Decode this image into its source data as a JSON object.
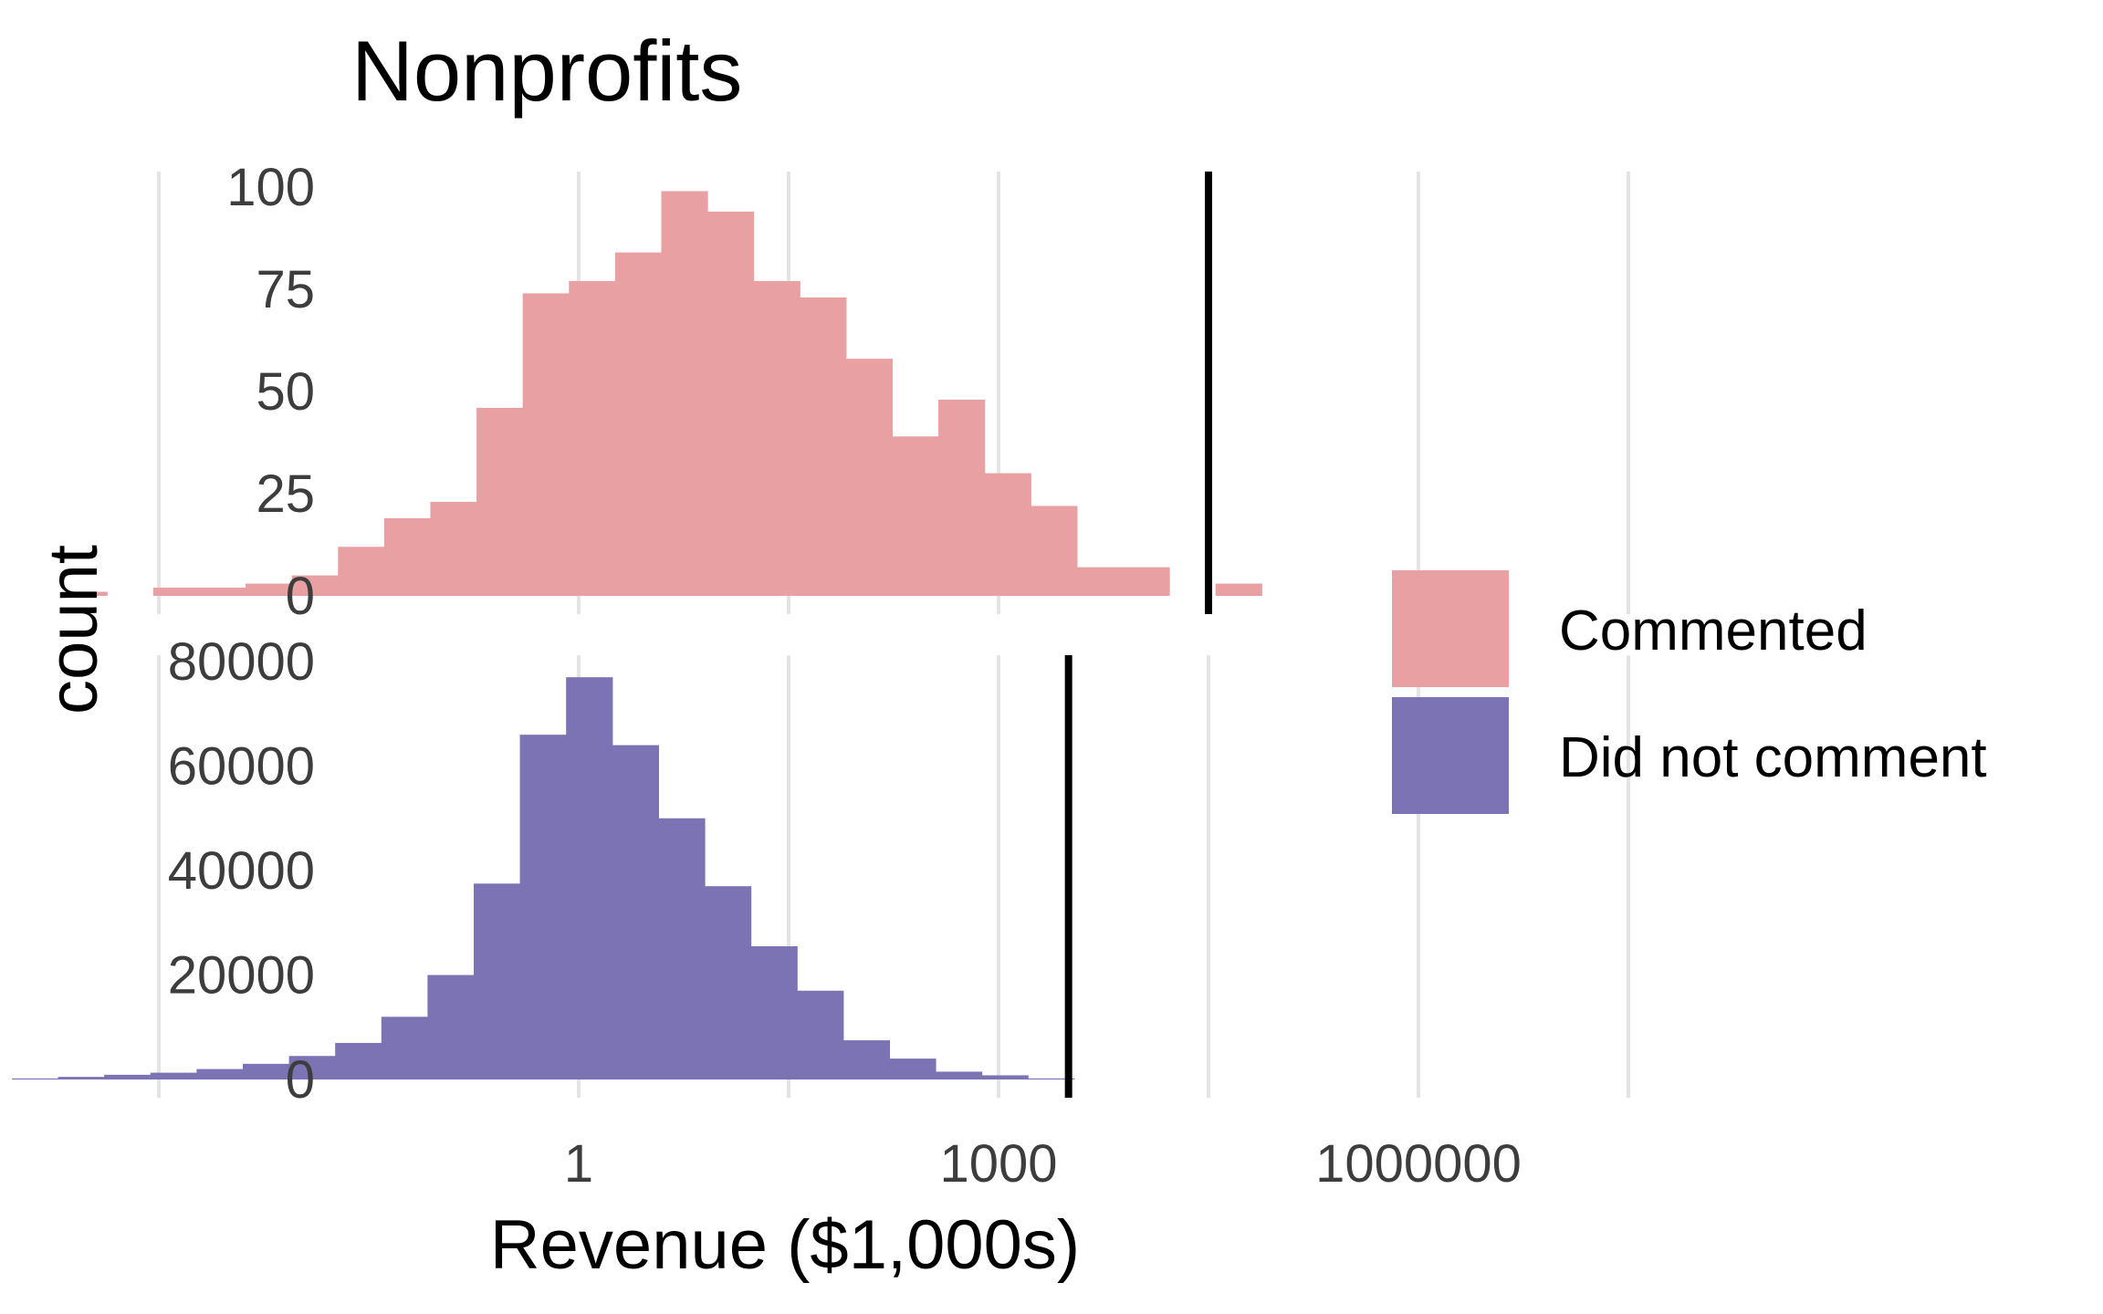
{
  "chart_data": {
    "type": "bar",
    "title": "Nonprofits",
    "xlabel": "Revenue ($1,000s)",
    "ylabel": "count",
    "x_scale": "log10",
    "x_ticks": [
      {
        "value": 1,
        "label": "1"
      },
      {
        "value": 1000,
        "label": "1000"
      },
      {
        "value": 1000000,
        "label": "1000000"
      }
    ],
    "x_minor_grid": [
      0.001,
      31.6,
      31623,
      1000000000
    ],
    "xlim": [
      0.0001,
      1000000000
    ],
    "bin_edges_log10": [
      -3.3,
      -2.65,
      -2,
      -1.35,
      -0.7,
      -0.05,
      0.6,
      1.25,
      1.9,
      2.55,
      3.2,
      3.85,
      4.5,
      5.15,
      5.8,
      6.45,
      7.1,
      7.75
    ],
    "grid": "vertical",
    "legend": {
      "placement": "right",
      "entries": [
        {
          "label": "Commented",
          "color": "#e8a0a2"
        },
        {
          "label": "Did not comment",
          "color": "#7c73b4"
        }
      ]
    },
    "panels": [
      {
        "series": "Commented",
        "color": "#e8a0a2",
        "ylim": [
          0,
          105
        ],
        "y_ticks": [
          0,
          25,
          50,
          75,
          100
        ],
        "counts": [
          1,
          0,
          2,
          2,
          3,
          5,
          12,
          19,
          23,
          46,
          74,
          77,
          84,
          99,
          94,
          77,
          73,
          58,
          39,
          48,
          30,
          22,
          7,
          7,
          0,
          3
        ],
        "bin_start_log10": -3.7,
        "bin_width_log10": 0.33,
        "reference_line": 31623
      },
      {
        "series": "Did not comment",
        "color": "#7c73b4",
        "ylim": [
          0,
          81000
        ],
        "y_ticks": [
          0,
          20000,
          40000,
          60000,
          80000
        ],
        "tick_labels": [
          "0",
          "20000",
          "40000",
          "60000",
          "80000"
        ],
        "counts": [
          200,
          500,
          900,
          1300,
          2000,
          3000,
          4500,
          7000,
          12000,
          20000,
          37500,
          66000,
          77000,
          64000,
          50000,
          37000,
          25500,
          17000,
          7500,
          4000,
          1500,
          800,
          200,
          0
        ],
        "bin_start_log10": -4.05,
        "bin_width_log10": 0.33,
        "reference_line": 3162
      }
    ]
  }
}
